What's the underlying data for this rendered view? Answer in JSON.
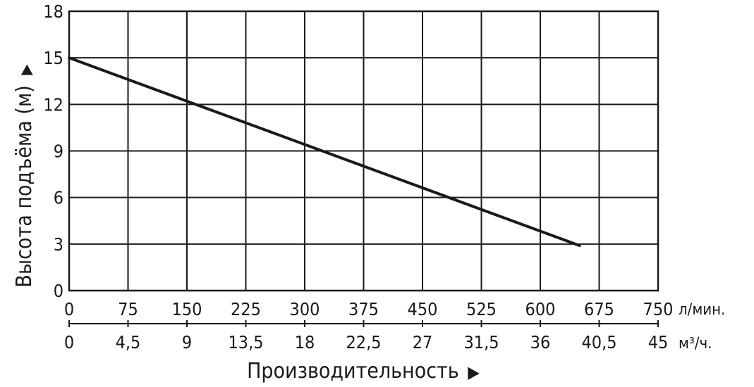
{
  "chart_data": {
    "type": "line",
    "title": "",
    "ylabel": "Высота подъёма (м)",
    "ylabel_arrow": "▶",
    "xlabel": "Производительность",
    "xlabel_arrow": "▶",
    "ylim": [
      0,
      18
    ],
    "yticks": [
      "0",
      "3",
      "6",
      "9",
      "12",
      "15",
      "18"
    ],
    "xlim": [
      0,
      750
    ],
    "xticks": [
      "0",
      "75",
      "150",
      "225",
      "300",
      "375",
      "450",
      "525",
      "600",
      "675",
      "750"
    ],
    "x_unit": "л/мин.",
    "x2ticks": [
      "0",
      "4,5",
      "9",
      "13,5",
      "18",
      "22,5",
      "27",
      "31,5",
      "36",
      "40,5",
      "45"
    ],
    "x2_unit": "м³/ч.",
    "grid": true,
    "series": [
      {
        "x": [
          0,
          650
        ],
        "y": [
          15,
          2.9
        ],
        "color": "#1a1a1a"
      }
    ]
  }
}
